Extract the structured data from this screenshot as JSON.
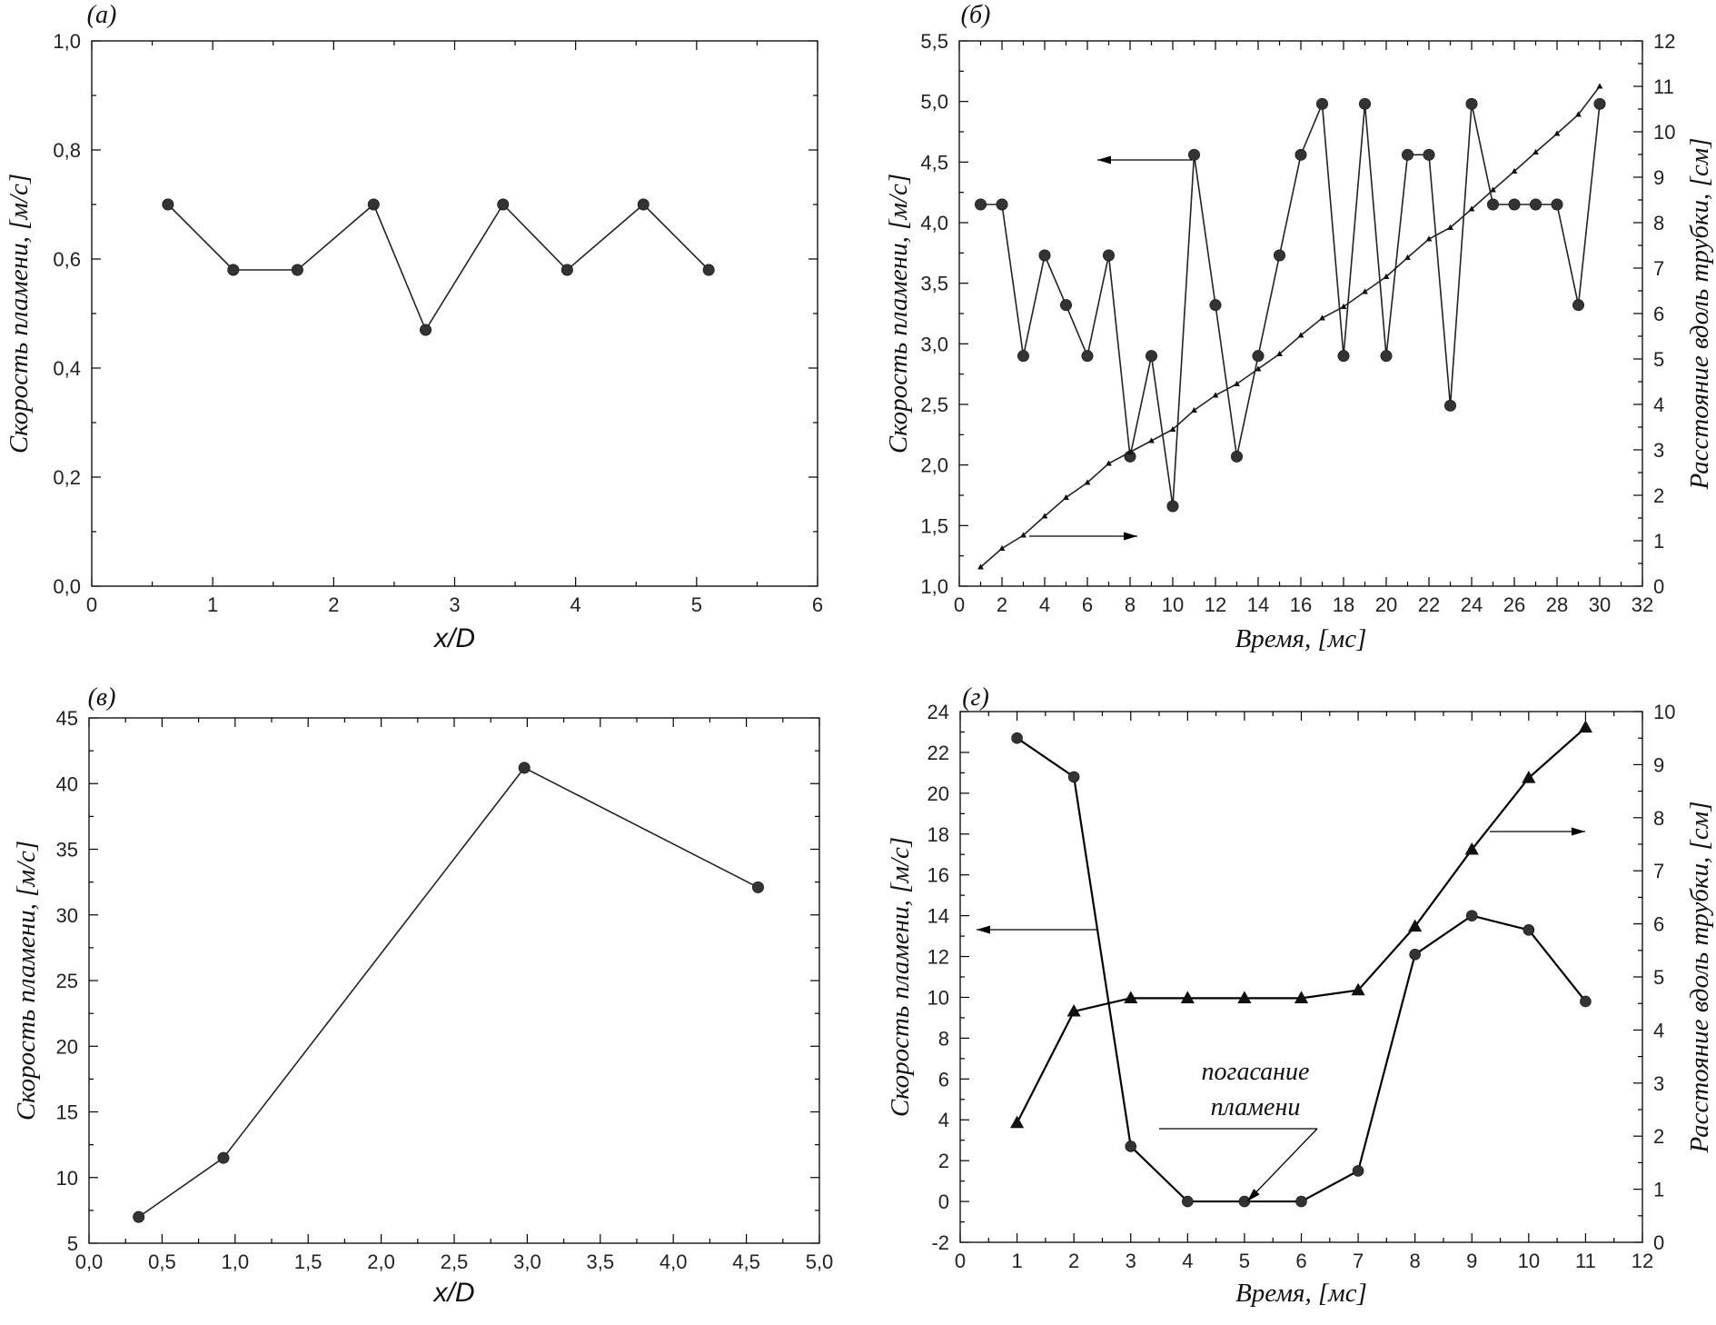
{
  "chart_data": [
    {
      "id": "a",
      "type": "line",
      "panel_label": "(a)",
      "xlabel": "x/D",
      "ylabel": "Скорость пламени, [м/с]",
      "xlim": [
        0,
        6
      ],
      "ylim": [
        0.0,
        1.0
      ],
      "xticks": [
        "0",
        "1",
        "2",
        "3",
        "4",
        "5",
        "6"
      ],
      "yticks": [
        "0,0",
        "0,2",
        "0,4",
        "0,6",
        "0,8",
        "1,0"
      ],
      "series": [
        {
          "marker": "circle",
          "x": [
            0.63,
            1.17,
            1.7,
            2.33,
            2.76,
            3.4,
            3.93,
            4.56,
            5.1
          ],
          "y": [
            0.7,
            0.58,
            0.58,
            0.7,
            0.47,
            0.7,
            0.58,
            0.7,
            0.58
          ]
        }
      ]
    },
    {
      "id": "b",
      "type": "line",
      "panel_label": "(б)",
      "xlabel": "Время, [мс]",
      "ylabel": "Скорость пламени, [м/с]",
      "y2label": "Расстояние вдоль трубки, [см]",
      "xlim": [
        0,
        32
      ],
      "ylim": [
        1.0,
        5.5
      ],
      "y2lim": [
        0,
        12
      ],
      "xticks": [
        "0",
        "2",
        "4",
        "6",
        "8",
        "10",
        "12",
        "14",
        "16",
        "18",
        "20",
        "22",
        "24",
        "26",
        "28",
        "30",
        "32"
      ],
      "yticks": [
        "1,0",
        "1,5",
        "2,0",
        "2,5",
        "3,0",
        "3,5",
        "4,0",
        "4,5",
        "5,0",
        "5,5"
      ],
      "y2ticks": [
        "0",
        "1",
        "2",
        "3",
        "4",
        "5",
        "6",
        "7",
        "8",
        "9",
        "10",
        "11",
        "12"
      ],
      "series": [
        {
          "marker": "circle",
          "axis": "left",
          "x": [
            1,
            2,
            3,
            4,
            5,
            6,
            7,
            8,
            9,
            10,
            11,
            12,
            13,
            14,
            15,
            16,
            17,
            18,
            19,
            20,
            21,
            22,
            23,
            24,
            25,
            26,
            27,
            28,
            29,
            30
          ],
          "y": [
            4.15,
            4.15,
            2.9,
            3.73,
            3.32,
            2.9,
            3.73,
            2.07,
            2.9,
            1.66,
            4.56,
            3.32,
            2.07,
            2.9,
            3.73,
            4.56,
            4.98,
            2.9,
            4.98,
            2.9,
            4.56,
            4.56,
            2.49,
            4.98,
            4.15,
            4.15,
            4.15,
            4.15,
            3.32,
            4.98
          ]
        },
        {
          "marker": "triangle-small",
          "axis": "right",
          "x": [
            1,
            2,
            3,
            4,
            5,
            6,
            7,
            8,
            9,
            10,
            11,
            12,
            13,
            14,
            15,
            16,
            17,
            18,
            19,
            20,
            21,
            22,
            23,
            24,
            25,
            26,
            27,
            28,
            29,
            30
          ],
          "y": [
            0.42,
            0.83,
            1.12,
            1.54,
            1.95,
            2.28,
            2.7,
            2.95,
            3.2,
            3.45,
            3.87,
            4.2,
            4.45,
            4.78,
            5.11,
            5.52,
            5.9,
            6.15,
            6.48,
            6.81,
            7.23,
            7.64,
            7.89,
            8.3,
            8.72,
            9.13,
            9.55,
            9.96,
            10.38,
            11.0
          ]
        }
      ]
    },
    {
      "id": "v",
      "type": "line",
      "panel_label": "(в)",
      "xlabel": "x/D",
      "ylabel": "Скорость пламени, [м/с]",
      "xlim": [
        0.0,
        5.0
      ],
      "ylim": [
        5,
        45
      ],
      "xticks": [
        "0,0",
        "0,5",
        "1,0",
        "1,5",
        "2,0",
        "2,5",
        "3,0",
        "3,5",
        "4,0",
        "4,5",
        "5,0"
      ],
      "yticks": [
        "5",
        "10",
        "15",
        "20",
        "25",
        "30",
        "35",
        "40",
        "45"
      ],
      "series": [
        {
          "marker": "circle",
          "x": [
            0.34,
            0.92,
            2.98,
            4.58
          ],
          "y": [
            7.0,
            11.5,
            41.2,
            32.1
          ]
        }
      ]
    },
    {
      "id": "g",
      "type": "line",
      "panel_label": "(г)",
      "xlabel": "Время, [мс]",
      "ylabel": "Скорость пламени, [м/с]",
      "y2label": "Расстояние вдоль трубки, [см]",
      "annotation": [
        "погасание",
        "пламени"
      ],
      "xlim": [
        0,
        12
      ],
      "ylim": [
        -2,
        24
      ],
      "y2lim": [
        0,
        10
      ],
      "xticks": [
        "0",
        "1",
        "2",
        "3",
        "4",
        "5",
        "6",
        "7",
        "8",
        "9",
        "10",
        "11",
        "12"
      ],
      "yticks": [
        "-2",
        "0",
        "2",
        "4",
        "6",
        "8",
        "10",
        "12",
        "14",
        "16",
        "18",
        "20",
        "22",
        "24"
      ],
      "y2ticks": [
        "0",
        "1",
        "2",
        "3",
        "4",
        "5",
        "6",
        "7",
        "8",
        "9",
        "10"
      ],
      "series": [
        {
          "marker": "circle",
          "axis": "left",
          "x": [
            1,
            2,
            3,
            4,
            5,
            6,
            7,
            8,
            9,
            10,
            11
          ],
          "y": [
            22.7,
            20.8,
            2.7,
            0,
            0,
            0,
            1.5,
            12.1,
            14.0,
            13.3,
            9.8
          ]
        },
        {
          "marker": "triangle",
          "axis": "right",
          "x": [
            1,
            2,
            3,
            4,
            5,
            6,
            7,
            8,
            9,
            10,
            11
          ],
          "y": [
            2.25,
            4.35,
            4.6,
            4.6,
            4.6,
            4.6,
            4.75,
            5.95,
            7.4,
            8.75,
            9.7
          ]
        }
      ]
    }
  ]
}
